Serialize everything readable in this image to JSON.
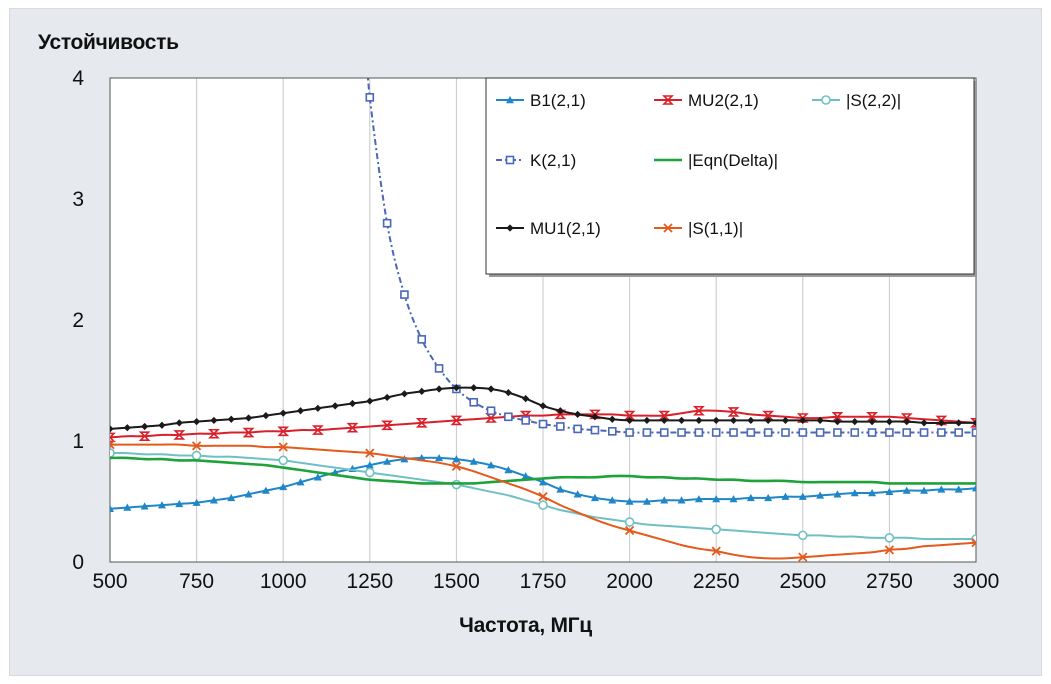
{
  "chart_data": {
    "type": "line",
    "ylabel": "Устойчивость",
    "xlabel": "Частота, МГц",
    "xlim": [
      500,
      3000
    ],
    "ylim": [
      0,
      4
    ],
    "xticks": [
      "500",
      "750",
      "1000",
      "1250",
      "1500",
      "1750",
      "2000",
      "2250",
      "2500",
      "2750",
      "3000"
    ],
    "yticks": [
      "0",
      "1",
      "2",
      "3",
      "4"
    ],
    "grid": "vertical",
    "legend_position": "top-right",
    "x": [
      500,
      550,
      600,
      650,
      700,
      750,
      800,
      850,
      900,
      950,
      1000,
      1050,
      1100,
      1150,
      1200,
      1250,
      1300,
      1350,
      1400,
      1450,
      1500,
      1550,
      1600,
      1650,
      1700,
      1750,
      1800,
      1850,
      1900,
      1950,
      2000,
      2050,
      2100,
      2150,
      2200,
      2250,
      2300,
      2350,
      2400,
      2450,
      2500,
      2550,
      2600,
      2650,
      2700,
      2750,
      2800,
      2850,
      2900,
      2950,
      3000
    ],
    "series": [
      {
        "name": "B1(2,1)",
        "color": "#1f86c8",
        "marker": "triangle",
        "values": [
          0.44,
          0.45,
          0.46,
          0.47,
          0.48,
          0.49,
          0.51,
          0.53,
          0.56,
          0.59,
          0.62,
          0.66,
          0.7,
          0.74,
          0.77,
          0.8,
          0.83,
          0.85,
          0.86,
          0.86,
          0.85,
          0.83,
          0.8,
          0.76,
          0.71,
          0.66,
          0.6,
          0.56,
          0.53,
          0.51,
          0.5,
          0.5,
          0.51,
          0.51,
          0.52,
          0.52,
          0.52,
          0.53,
          0.53,
          0.54,
          0.54,
          0.55,
          0.56,
          0.57,
          0.57,
          0.58,
          0.59,
          0.59,
          0.6,
          0.6,
          0.61
        ]
      },
      {
        "name": "MU2(2,1)",
        "color": "#d9202a",
        "marker": "hourglass",
        "values": [
          1.03,
          1.04,
          1.04,
          1.05,
          1.05,
          1.06,
          1.06,
          1.07,
          1.07,
          1.08,
          1.08,
          1.09,
          1.09,
          1.1,
          1.11,
          1.12,
          1.13,
          1.14,
          1.15,
          1.16,
          1.17,
          1.18,
          1.19,
          1.2,
          1.21,
          1.21,
          1.22,
          1.22,
          1.22,
          1.22,
          1.21,
          1.21,
          1.21,
          1.23,
          1.25,
          1.25,
          1.24,
          1.22,
          1.21,
          1.2,
          1.19,
          1.19,
          1.2,
          1.2,
          1.2,
          1.2,
          1.19,
          1.18,
          1.17,
          1.16,
          1.15
        ]
      },
      {
        "name": "|S(2,2)|",
        "color": "#6fc0c4",
        "marker": "circle",
        "values": [
          0.9,
          0.9,
          0.89,
          0.89,
          0.88,
          0.88,
          0.87,
          0.87,
          0.86,
          0.85,
          0.84,
          0.82,
          0.8,
          0.78,
          0.76,
          0.74,
          0.72,
          0.7,
          0.68,
          0.66,
          0.64,
          0.61,
          0.58,
          0.55,
          0.51,
          0.47,
          0.43,
          0.4,
          0.37,
          0.35,
          0.33,
          0.31,
          0.3,
          0.29,
          0.28,
          0.27,
          0.26,
          0.25,
          0.24,
          0.23,
          0.22,
          0.22,
          0.21,
          0.21,
          0.2,
          0.2,
          0.2,
          0.19,
          0.19,
          0.19,
          0.19
        ]
      },
      {
        "name": "K(2,1)",
        "color": "#4a67b8",
        "marker": "square",
        "values": [
          null,
          null,
          null,
          null,
          null,
          null,
          null,
          null,
          null,
          null,
          null,
          null,
          null,
          null,
          null,
          3.84,
          2.8,
          2.21,
          1.84,
          1.6,
          1.43,
          1.32,
          1.25,
          1.2,
          1.17,
          1.14,
          1.12,
          1.1,
          1.09,
          1.08,
          1.07,
          1.07,
          1.07,
          1.07,
          1.07,
          1.07,
          1.07,
          1.07,
          1.07,
          1.07,
          1.07,
          1.07,
          1.07,
          1.07,
          1.07,
          1.07,
          1.07,
          1.07,
          1.07,
          1.07,
          1.07
        ]
      },
      {
        "name": "|Eqn(Delta)|",
        "color": "#1fa23a",
        "marker": "none",
        "values": [
          0.86,
          0.86,
          0.85,
          0.85,
          0.84,
          0.84,
          0.83,
          0.82,
          0.81,
          0.8,
          0.78,
          0.76,
          0.74,
          0.72,
          0.7,
          0.68,
          0.67,
          0.66,
          0.65,
          0.65,
          0.65,
          0.65,
          0.66,
          0.67,
          0.68,
          0.69,
          0.7,
          0.7,
          0.7,
          0.71,
          0.71,
          0.7,
          0.7,
          0.69,
          0.69,
          0.68,
          0.68,
          0.67,
          0.67,
          0.67,
          0.66,
          0.66,
          0.66,
          0.66,
          0.66,
          0.65,
          0.65,
          0.65,
          0.65,
          0.65,
          0.65
        ]
      },
      {
        "name": "MU1(2,1)",
        "color": "#1a1a1a",
        "marker": "diamond",
        "values": [
          1.1,
          1.11,
          1.12,
          1.13,
          1.15,
          1.16,
          1.17,
          1.18,
          1.19,
          1.21,
          1.23,
          1.25,
          1.27,
          1.29,
          1.31,
          1.33,
          1.36,
          1.39,
          1.41,
          1.43,
          1.44,
          1.44,
          1.43,
          1.4,
          1.35,
          1.29,
          1.25,
          1.22,
          1.2,
          1.18,
          1.17,
          1.17,
          1.17,
          1.17,
          1.17,
          1.17,
          1.17,
          1.17,
          1.17,
          1.17,
          1.17,
          1.17,
          1.16,
          1.16,
          1.16,
          1.16,
          1.16,
          1.15,
          1.15,
          1.15,
          1.15
        ]
      },
      {
        "name": "|S(1,1)|",
        "color": "#e35a1b",
        "marker": "x",
        "values": [
          0.97,
          0.97,
          0.97,
          0.97,
          0.97,
          0.96,
          0.96,
          0.96,
          0.96,
          0.95,
          0.95,
          0.94,
          0.93,
          0.92,
          0.91,
          0.9,
          0.88,
          0.86,
          0.84,
          0.82,
          0.79,
          0.75,
          0.7,
          0.65,
          0.6,
          0.54,
          0.47,
          0.41,
          0.35,
          0.3,
          0.26,
          0.22,
          0.18,
          0.14,
          0.11,
          0.09,
          0.06,
          0.04,
          0.03,
          0.03,
          0.04,
          0.05,
          0.06,
          0.07,
          0.08,
          0.1,
          0.11,
          0.13,
          0.14,
          0.15,
          0.16
        ]
      }
    ]
  }
}
